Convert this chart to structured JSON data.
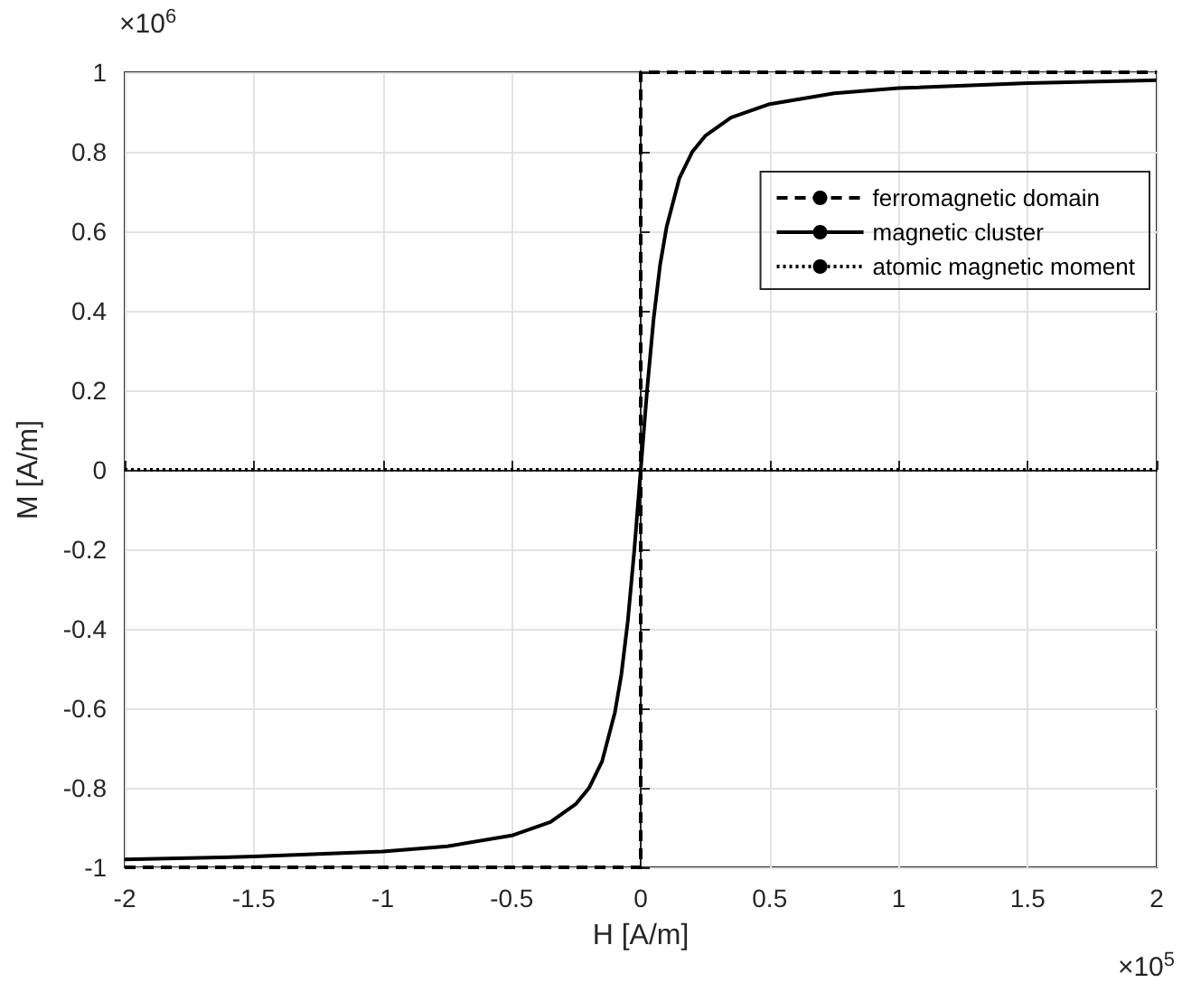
{
  "chart_data": {
    "type": "line",
    "xlabel": "H [A/m]",
    "ylabel": "M [A/m]",
    "annotations": [
      "×10$^{6}$",
      "×10$^{5}$"
    ],
    "xlim": [
      -2,
      2
    ],
    "xticks": [
      -2,
      -1.5,
      -1,
      -0.5,
      0,
      0.5,
      1,
      1.5,
      2
    ],
    "ylim": [
      -1,
      1
    ],
    "yticks": [
      -1,
      -0.8,
      -0.6,
      -0.4,
      -0.2,
      0,
      0.2,
      0.4,
      0.6,
      0.8,
      1
    ],
    "grid": true,
    "legend": "top right",
    "marker": "none",
    "series": [
      {
        "name": "ferromagnetic domain",
        "color": "#000000",
        "line_style": "dashed",
        "x": [
          -2,
          0,
          0,
          2
        ],
        "values": [
          -1,
          -1,
          1,
          1
        ]
      },
      {
        "name": "magnetic cluster",
        "color": "#000000",
        "line_style": "solid",
        "x": [
          -2,
          -1.5,
          -1,
          -0.75,
          -0.5,
          -0.35,
          -0.25,
          -0.2,
          -0.15,
          -0.1,
          -0.075,
          -0.05,
          -0.025,
          0,
          0.025,
          0.05,
          0.075,
          0.1,
          0.15,
          0.2,
          0.25,
          0.35,
          0.5,
          0.75,
          1,
          1.5,
          2
        ],
        "values": [
          -0.98,
          -0.973,
          -0.96,
          -0.947,
          -0.92,
          -0.886,
          -0.84,
          -0.8,
          -0.734,
          -0.61,
          -0.515,
          -0.38,
          -0.203,
          0,
          0.203,
          0.38,
          0.515,
          0.61,
          0.734,
          0.8,
          0.84,
          0.886,
          0.92,
          0.947,
          0.96,
          0.973,
          0.98
        ]
      },
      {
        "name": "atomic magnetic moment",
        "color": "#000000",
        "line_style": "dotted",
        "x": [
          -2,
          2
        ],
        "values": [
          0,
          0
        ]
      }
    ]
  }
}
